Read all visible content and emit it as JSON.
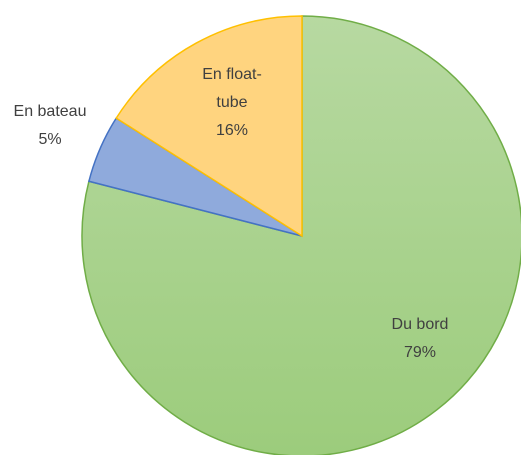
{
  "chart_data": {
    "type": "pie",
    "categories": [
      "Du bord",
      "En bateau",
      "En float-tube"
    ],
    "values": [
      79,
      5,
      16
    ],
    "value_labels": [
      "79%",
      "5%",
      "16%"
    ],
    "colors": [
      "#a9d18e",
      "#8faadc",
      "#ffd47f"
    ],
    "edge_colors": [
      "#70ad47",
      "#4472c4",
      "#ffc000"
    ]
  }
}
